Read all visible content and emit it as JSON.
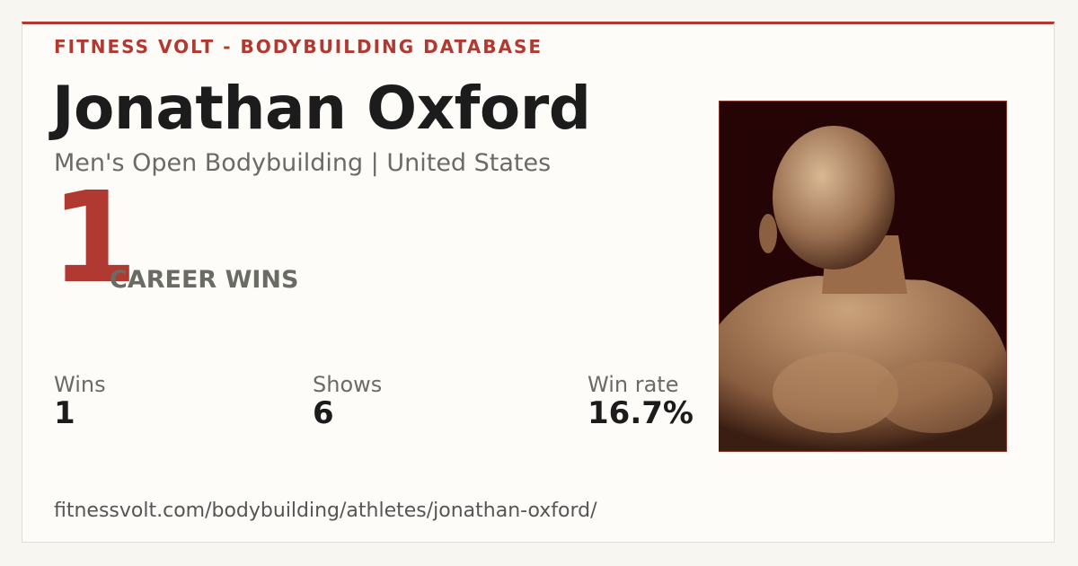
{
  "header": {
    "brand": "FITNESS VOLT - BODYBUILDING DATABASE"
  },
  "athlete": {
    "name": "Jonathan Oxford",
    "subtitle": "Men's Open Bodybuilding | United States"
  },
  "headline": {
    "value": "1",
    "label": "CAREER WINS"
  },
  "stats": [
    {
      "label": "Wins",
      "value": "1"
    },
    {
      "label": "Shows",
      "value": "6"
    },
    {
      "label": "Win rate",
      "value": "16.7%"
    }
  ],
  "footer": {
    "url": "fitnessvolt.com/bodybuilding/athletes/jonathan-oxford/"
  }
}
